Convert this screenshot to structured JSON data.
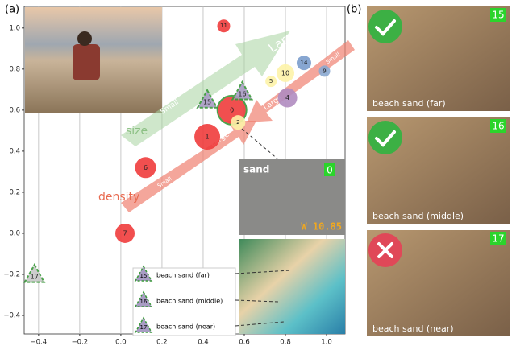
{
  "chart_data": {
    "type": "scatter",
    "panel_label": "(a)",
    "xlim": [
      -0.47,
      1.09
    ],
    "ylim": [
      -0.49,
      1.105
    ],
    "xticks": [
      {
        "value": -0.4,
        "label": "−0.4"
      },
      {
        "value": -0.2,
        "label": "−0.2"
      },
      {
        "value": 0,
        "label": "0.0"
      },
      {
        "value": 0.2,
        "label": "0.2"
      },
      {
        "value": 0.4,
        "label": "0.4"
      },
      {
        "value": 0.6,
        "label": "0.6"
      },
      {
        "value": 0.8,
        "label": "0.8"
      },
      {
        "value": 1,
        "label": "1.0"
      }
    ],
    "yticks": [
      {
        "value": -0.4,
        "label": "−0.4"
      },
      {
        "value": -0.2,
        "label": "−0.2"
      },
      {
        "value": 0,
        "label": "0.0"
      },
      {
        "value": 0.2,
        "label": "0.2"
      },
      {
        "value": 0.4,
        "label": "0.4"
      },
      {
        "value": 0.6,
        "label": "0.6"
      },
      {
        "value": 0.8,
        "label": "0.8"
      },
      {
        "value": 1,
        "label": "1.0"
      }
    ],
    "grid": true,
    "labels": [
      "11",
      "14",
      "9",
      "10",
      "5",
      "4",
      "0",
      "2",
      "1",
      "6",
      "7",
      "15",
      "16",
      "17"
    ],
    "x": [
      0.5,
      0.89,
      0.99,
      0.8,
      0.73,
      0.81,
      0.54,
      0.57,
      0.42,
      0.12,
      0.02,
      0.42,
      0.59,
      -0.42
    ],
    "values": [
      1.01,
      0.83,
      0.79,
      0.78,
      0.74,
      0.66,
      0.6,
      0.54,
      0.47,
      0.32,
      0.0,
      0.65,
      0.69,
      -0.2
    ],
    "sizes": [
      8,
      9,
      7,
      11,
      7,
      12,
      18,
      9,
      16,
      13,
      12,
      12,
      12,
      12
    ],
    "colors": [
      "#f03c3c",
      "#7a9ccc",
      "#8aa8d0",
      "#fdf3a8",
      "#fdf3a8",
      "#b08cc0",
      "#f03c3c",
      "#fdf3a8",
      "#f03c3c",
      "#f03c3c",
      "#f03c3c",
      "#a89cc4",
      "#a89cc4",
      "#c8c8c8"
    ],
    "edgecolors": [
      "none",
      "none",
      "none",
      "none",
      "none",
      "none",
      "#3a9a3a",
      "none",
      "none",
      "none",
      "none",
      "#3a9a3a",
      "#3a9a3a",
      "#3a9a3a"
    ],
    "markers": [
      "circle",
      "circle",
      "circle",
      "circle",
      "circle",
      "circle",
      "circle",
      "circle",
      "circle",
      "circle",
      "circle",
      "triangle",
      "triangle",
      "triangle"
    ],
    "annotations": {
      "size": "size",
      "size_small": "Small",
      "size_large": "Large",
      "density": "density",
      "density_small": "Small",
      "density_large": "Large",
      "density_small_top": "Small",
      "density_large_top": "Large"
    },
    "inset": {
      "title": "sand",
      "id": "0",
      "weight": "W 10.85"
    },
    "legend": [
      {
        "id": "15",
        "text": "beach sand (far)"
      },
      {
        "id": "16",
        "text": "beach sand (middle)"
      },
      {
        "id": "17",
        "text": "beach sand (near)"
      }
    ]
  },
  "panel_b": {
    "label": "(b)",
    "photos": [
      {
        "id": "15",
        "caption": "beach sand (far)",
        "result": "pass"
      },
      {
        "id": "16",
        "caption": "beach sand (middle)",
        "result": "pass"
      },
      {
        "id": "17",
        "caption": "beach sand (near)",
        "result": "fail"
      }
    ]
  }
}
